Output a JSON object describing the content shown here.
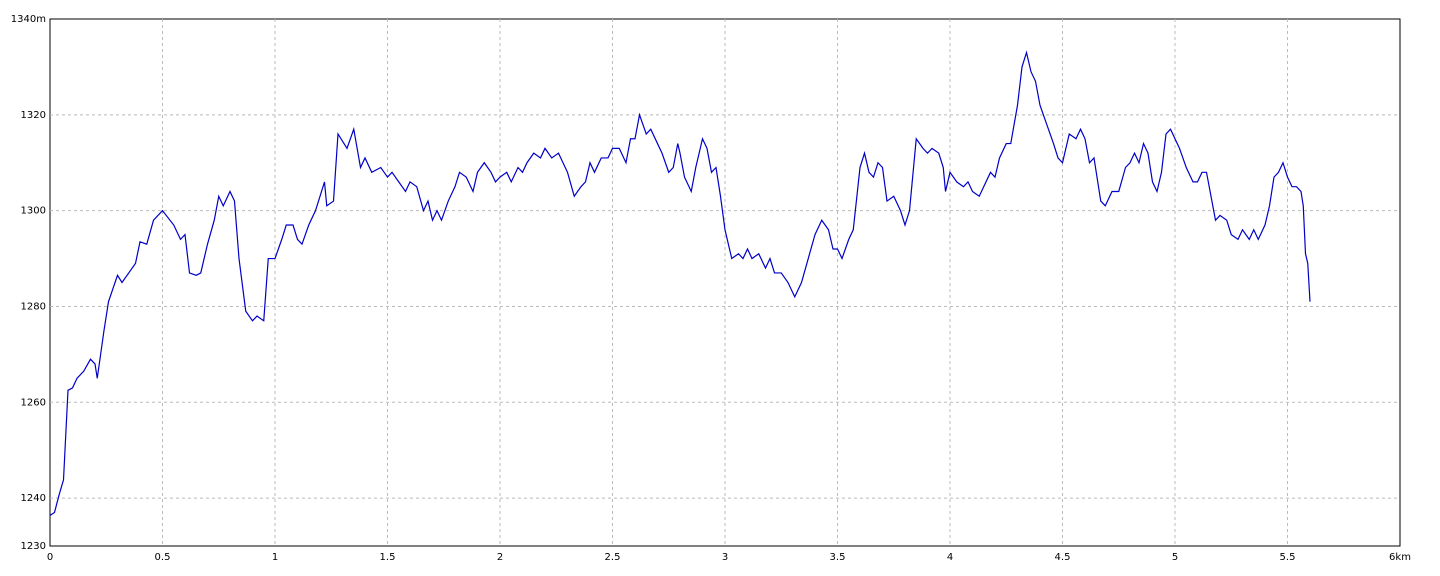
{
  "chart_data": {
    "type": "line",
    "x": [
      0,
      0.02,
      0.04,
      0.06,
      0.08,
      0.1,
      0.12,
      0.15,
      0.18,
      0.2,
      0.21,
      0.24,
      0.26,
      0.3,
      0.32,
      0.35,
      0.38,
      0.4,
      0.43,
      0.46,
      0.5,
      0.55,
      0.58,
      0.6,
      0.62,
      0.65,
      0.67,
      0.7,
      0.73,
      0.75,
      0.77,
      0.8,
      0.82,
      0.84,
      0.87,
      0.9,
      0.92,
      0.95,
      0.97,
      1.0,
      1.03,
      1.05,
      1.08,
      1.1,
      1.12,
      1.15,
      1.18,
      1.2,
      1.22,
      1.23,
      1.26,
      1.28,
      1.32,
      1.35,
      1.38,
      1.4,
      1.43,
      1.47,
      1.5,
      1.52,
      1.55,
      1.58,
      1.6,
      1.63,
      1.66,
      1.68,
      1.7,
      1.72,
      1.74,
      1.77,
      1.8,
      1.82,
      1.85,
      1.88,
      1.9,
      1.93,
      1.96,
      1.98,
      2.0,
      2.03,
      2.05,
      2.08,
      2.1,
      2.12,
      2.15,
      2.18,
      2.2,
      2.23,
      2.26,
      2.28,
      2.3,
      2.33,
      2.36,
      2.38,
      2.4,
      2.42,
      2.45,
      2.48,
      2.5,
      2.53,
      2.56,
      2.58,
      2.6,
      2.62,
      2.65,
      2.67,
      2.7,
      2.72,
      2.75,
      2.77,
      2.79,
      2.8,
      2.82,
      2.85,
      2.87,
      2.9,
      2.92,
      2.94,
      2.96,
      2.98,
      3.0,
      3.03,
      3.06,
      3.08,
      3.1,
      3.12,
      3.15,
      3.18,
      3.2,
      3.22,
      3.25,
      3.28,
      3.31,
      3.34,
      3.37,
      3.4,
      3.43,
      3.46,
      3.48,
      3.5,
      3.52,
      3.55,
      3.57,
      3.6,
      3.62,
      3.64,
      3.66,
      3.68,
      3.7,
      3.72,
      3.75,
      3.78,
      3.8,
      3.82,
      3.85,
      3.88,
      3.9,
      3.92,
      3.95,
      3.97,
      3.98,
      4.0,
      4.03,
      4.06,
      4.08,
      4.1,
      4.13,
      4.15,
      4.18,
      4.2,
      4.22,
      4.25,
      4.27,
      4.3,
      4.32,
      4.34,
      4.36,
      4.38,
      4.4,
      4.43,
      4.46,
      4.48,
      4.5,
      4.53,
      4.56,
      4.58,
      4.6,
      4.62,
      4.64,
      4.67,
      4.69,
      4.72,
      4.75,
      4.78,
      4.8,
      4.82,
      4.84,
      4.86,
      4.88,
      4.9,
      4.92,
      4.94,
      4.96,
      4.98,
      5.0,
      5.02,
      5.05,
      5.08,
      5.1,
      5.12,
      5.14,
      5.16,
      5.18,
      5.2,
      5.23,
      5.25,
      5.28,
      5.3,
      5.33,
      5.35,
      5.37,
      5.4,
      5.42,
      5.44,
      5.46,
      5.48,
      5.5,
      5.52,
      5.54,
      5.56,
      5.57,
      5.58,
      5.59,
      5.6
    ],
    "values": [
      1236.4,
      1237,
      1240.6,
      1243.8,
      1262.5,
      1263,
      1265,
      1266.5,
      1269,
      1268,
      1265,
      1275,
      1281,
      1286.5,
      1285,
      1287,
      1289,
      1293.5,
      1293,
      1298,
      1300,
      1297,
      1294,
      1295,
      1287,
      1286.5,
      1287,
      1293,
      1298,
      1303,
      1301,
      1304,
      1302,
      1290,
      1279,
      1277,
      1278,
      1277,
      1290,
      1290,
      1294,
      1297,
      1297,
      1294,
      1293,
      1297,
      1300,
      1303,
      1306,
      1301,
      1302,
      1316,
      1313,
      1317,
      1309,
      1311,
      1308,
      1309,
      1307,
      1308,
      1306,
      1304,
      1306,
      1305,
      1300,
      1302,
      1298,
      1300,
      1298,
      1302,
      1305,
      1308,
      1307,
      1304,
      1308,
      1310,
      1308,
      1306,
      1307,
      1308,
      1306,
      1309,
      1308,
      1310,
      1312,
      1311,
      1313,
      1311,
      1312,
      1310,
      1308,
      1303,
      1305,
      1306,
      1310,
      1308,
      1311,
      1311,
      1313,
      1313,
      1310,
      1315,
      1315,
      1320,
      1316,
      1317,
      1314,
      1312,
      1308,
      1309,
      1314,
      1312,
      1307,
      1304,
      1309,
      1315,
      1313,
      1308,
      1309,
      1303,
      1296,
      1290,
      1291,
      1290,
      1292,
      1290,
      1291,
      1288,
      1290,
      1287,
      1287,
      1285,
      1282,
      1285,
      1290,
      1295,
      1298,
      1296,
      1292,
      1292,
      1290,
      1294,
      1296,
      1309,
      1312,
      1308,
      1307,
      1310,
      1309,
      1302,
      1303,
      1300,
      1297,
      1300,
      1315,
      1313,
      1312,
      1313,
      1312,
      1309,
      1304,
      1308,
      1306,
      1305,
      1306,
      1304,
      1303,
      1305,
      1308,
      1307,
      1311,
      1314,
      1314,
      1322,
      1330,
      1333,
      1329,
      1327,
      1322,
      1318,
      1314,
      1311,
      1310,
      1316,
      1315,
      1317,
      1315,
      1310,
      1311,
      1302,
      1301,
      1304,
      1304,
      1309,
      1310,
      1312,
      1310,
      1314,
      1312,
      1306,
      1304,
      1308,
      1316,
      1317,
      1315,
      1313,
      1309,
      1306,
      1306,
      1308,
      1308,
      1303,
      1298,
      1299,
      1298,
      1295,
      1294,
      1296,
      1294,
      1296,
      1294,
      1297,
      1301,
      1307,
      1308,
      1310,
      1307,
      1305,
      1305,
      1304,
      1301,
      1291,
      1289,
      1281
    ],
    "color": "#0000c8",
    "xlim": [
      0,
      6
    ],
    "xticks": [
      0,
      0.5,
      1,
      1.5,
      2,
      2.5,
      3,
      3.5,
      4,
      4.5,
      5,
      5.5,
      {
        "value": 6,
        "label": "6km"
      }
    ],
    "ylim": [
      1230,
      1340
    ],
    "yticks": [
      1230,
      1240,
      1260,
      1280,
      1300,
      1320,
      {
        "value": 1340,
        "label": "1340m"
      }
    ],
    "grid": true
  }
}
